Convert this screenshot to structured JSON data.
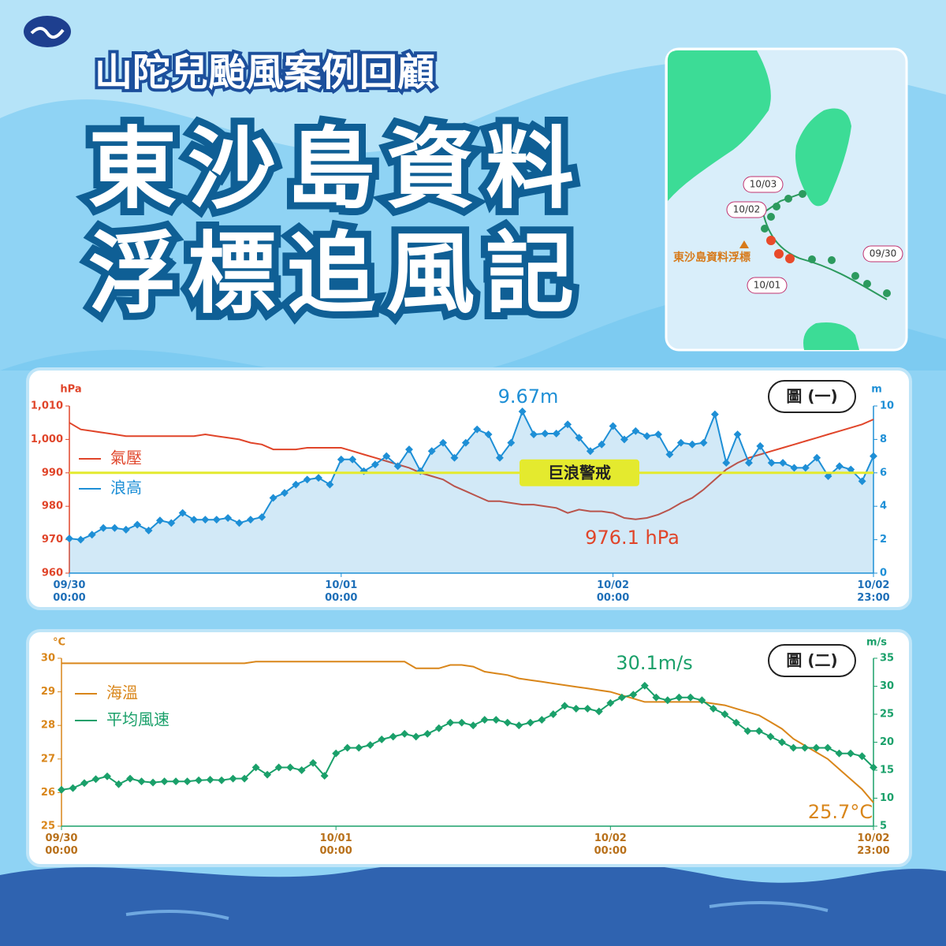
{
  "header": {
    "subtitle": "山陀兒颱風案例回顧",
    "title_line1": "東沙島資料",
    "title_line2": "浮標追風記"
  },
  "map": {
    "buoy_label": "東沙島資料浮標",
    "date_labels": [
      "10/03",
      "10/02",
      "09/30",
      "10/01"
    ]
  },
  "chart_data": [
    {
      "type": "line",
      "figure_label": "圖 (一)",
      "y_unit": "hPa",
      "y2_unit": "m",
      "categories": [
        "09/30\n00:00",
        null,
        null,
        null,
        null,
        null,
        null,
        null,
        null,
        null,
        null,
        null,
        null,
        null,
        null,
        null,
        null,
        null,
        null,
        null,
        null,
        null,
        null,
        null,
        "10/01\n00:00",
        null,
        null,
        null,
        null,
        null,
        null,
        null,
        null,
        null,
        null,
        null,
        null,
        null,
        null,
        null,
        null,
        null,
        null,
        null,
        null,
        null,
        null,
        null,
        "10/02\n00:00",
        null,
        null,
        null,
        null,
        null,
        null,
        null,
        null,
        null,
        null,
        null,
        null,
        null,
        null,
        null,
        null,
        null,
        null,
        null,
        null,
        null,
        null,
        "10/02\n23:00"
      ],
      "ylim": [
        960,
        1010
      ],
      "yticks": [
        960,
        970,
        980,
        990,
        {
          "value": 1000,
          "label": "1,000"
        },
        {
          "value": 1010,
          "label": "1,010"
        }
      ],
      "y2lim": [
        0,
        10
      ],
      "y2ticks": [
        0,
        2,
        4,
        6,
        8,
        10
      ],
      "threshold": {
        "value": 6,
        "label": "巨浪警戒",
        "axis": "y2",
        "color": "#e4ea2e"
      },
      "annotations": [
        "9.67m",
        "976.1 hPa"
      ],
      "series": [
        {
          "name": "氣壓",
          "color": "#e0452a",
          "values": [
            1005,
            1003,
            1002.5,
            1002,
            1001.5,
            1001,
            1001,
            1001,
            1001,
            1001,
            1001,
            1001,
            1001.5,
            1001,
            1000.5,
            1000,
            999,
            998.5,
            997,
            997,
            997,
            997.5,
            997.5,
            997.5,
            997.5,
            996.5,
            995.5,
            994.5,
            993.5,
            992.5,
            991.5,
            990,
            989,
            988,
            986,
            984.5,
            983,
            981.5,
            981.5,
            981,
            980.5,
            980.5,
            980,
            979.5,
            978,
            979,
            978.5,
            978.5,
            978,
            976.5,
            976.1,
            976.5,
            977.5,
            979,
            981,
            982.5,
            985,
            988,
            991,
            993,
            994.5,
            995.5,
            996.5,
            997.5,
            998.5,
            999.5,
            1000.5,
            1001.5,
            1002.5,
            1003.5,
            1004.5,
            1006
          ]
        },
        {
          "name": "浪高",
          "color": "#1e8fd6",
          "axis": "y2",
          "markers": true,
          "area": true,
          "values": [
            2.07,
            2.0,
            2.3,
            2.7,
            2.7,
            2.6,
            2.9,
            2.55,
            3.15,
            3.0,
            3.6,
            3.2,
            3.2,
            3.2,
            3.3,
            3.0,
            3.2,
            3.35,
            4.5,
            4.8,
            5.3,
            5.6,
            5.7,
            5.3,
            6.8,
            6.8,
            6.1,
            6.5,
            7.0,
            6.4,
            7.4,
            6.1,
            7.3,
            7.8,
            6.9,
            7.8,
            8.6,
            8.3,
            6.9,
            7.8,
            9.67,
            8.3,
            8.35,
            8.35,
            8.9,
            8.1,
            7.3,
            7.7,
            8.8,
            8.0,
            8.5,
            8.2,
            8.3,
            7.1,
            7.8,
            7.7,
            7.8,
            9.5,
            6.6,
            8.3,
            6.6,
            7.6,
            6.6,
            6.6,
            6.3,
            6.3,
            6.9,
            5.8,
            6.4,
            6.2,
            5.5,
            7.0
          ]
        }
      ]
    },
    {
      "type": "line",
      "figure_label": "圖 (二)",
      "y_unit": "°C",
      "y2_unit": "m/s",
      "categories": [
        "09/30\n00:00",
        null,
        null,
        null,
        null,
        null,
        null,
        null,
        null,
        null,
        null,
        null,
        null,
        null,
        null,
        null,
        null,
        null,
        null,
        null,
        null,
        null,
        null,
        null,
        "10/01\n00:00",
        null,
        null,
        null,
        null,
        null,
        null,
        null,
        null,
        null,
        null,
        null,
        null,
        null,
        null,
        null,
        null,
        null,
        null,
        null,
        null,
        null,
        null,
        null,
        "10/02\n00:00",
        null,
        null,
        null,
        null,
        null,
        null,
        null,
        null,
        null,
        null,
        null,
        null,
        null,
        null,
        null,
        null,
        null,
        null,
        null,
        null,
        null,
        null,
        "10/02\n23:00"
      ],
      "ylim": [
        25,
        30
      ],
      "yticks": [
        25,
        26,
        27,
        28,
        29,
        30
      ],
      "y2lim": [
        5,
        35
      ],
      "y2ticks": [
        5,
        10,
        15,
        20,
        25,
        30,
        35
      ],
      "annotations": [
        "30.1m/s",
        "25.7°C"
      ],
      "series": [
        {
          "name": "海溫",
          "color": "#d9861a",
          "values": [
            29.85,
            29.85,
            29.85,
            29.85,
            29.85,
            29.85,
            29.85,
            29.85,
            29.85,
            29.85,
            29.85,
            29.85,
            29.85,
            29.85,
            29.85,
            29.85,
            29.85,
            29.9,
            29.9,
            29.9,
            29.9,
            29.9,
            29.9,
            29.9,
            29.9,
            29.9,
            29.9,
            29.9,
            29.9,
            29.9,
            29.9,
            29.7,
            29.7,
            29.7,
            29.8,
            29.8,
            29.75,
            29.6,
            29.55,
            29.5,
            29.4,
            29.35,
            29.3,
            29.25,
            29.2,
            29.15,
            29.1,
            29.05,
            29.0,
            28.9,
            28.8,
            28.7,
            28.7,
            28.7,
            28.7,
            28.7,
            28.7,
            28.65,
            28.6,
            28.5,
            28.4,
            28.3,
            28.1,
            27.9,
            27.6,
            27.4,
            27.2,
            27.0,
            26.7,
            26.4,
            26.1,
            25.7
          ]
        },
        {
          "name": "平均風速",
          "color": "#1aa06a",
          "axis": "y2",
          "markers": true,
          "values": [
            11.5,
            11.8,
            12.7,
            13.4,
            13.9,
            12.5,
            13.5,
            13.0,
            12.8,
            13.0,
            13.0,
            13.0,
            13.2,
            13.3,
            13.2,
            13.5,
            13.5,
            15.5,
            14.2,
            15.5,
            15.5,
            15.0,
            16.3,
            14.0,
            18.0,
            19.0,
            19.0,
            19.5,
            20.5,
            21.0,
            21.5,
            21.0,
            21.5,
            22.5,
            23.5,
            23.5,
            23.0,
            24.0,
            24.0,
            23.5,
            23.0,
            23.5,
            24.0,
            25.0,
            26.5,
            26.0,
            26.0,
            25.5,
            27.0,
            28.0,
            28.5,
            30.1,
            28.0,
            27.5,
            28.0,
            28.0,
            27.5,
            26.0,
            25.0,
            23.5,
            22.0,
            22.0,
            21.0,
            20.0,
            19.0,
            19.0,
            19.0,
            19.0,
            18.0,
            18.0,
            17.5,
            15.5
          ]
        }
      ]
    }
  ]
}
